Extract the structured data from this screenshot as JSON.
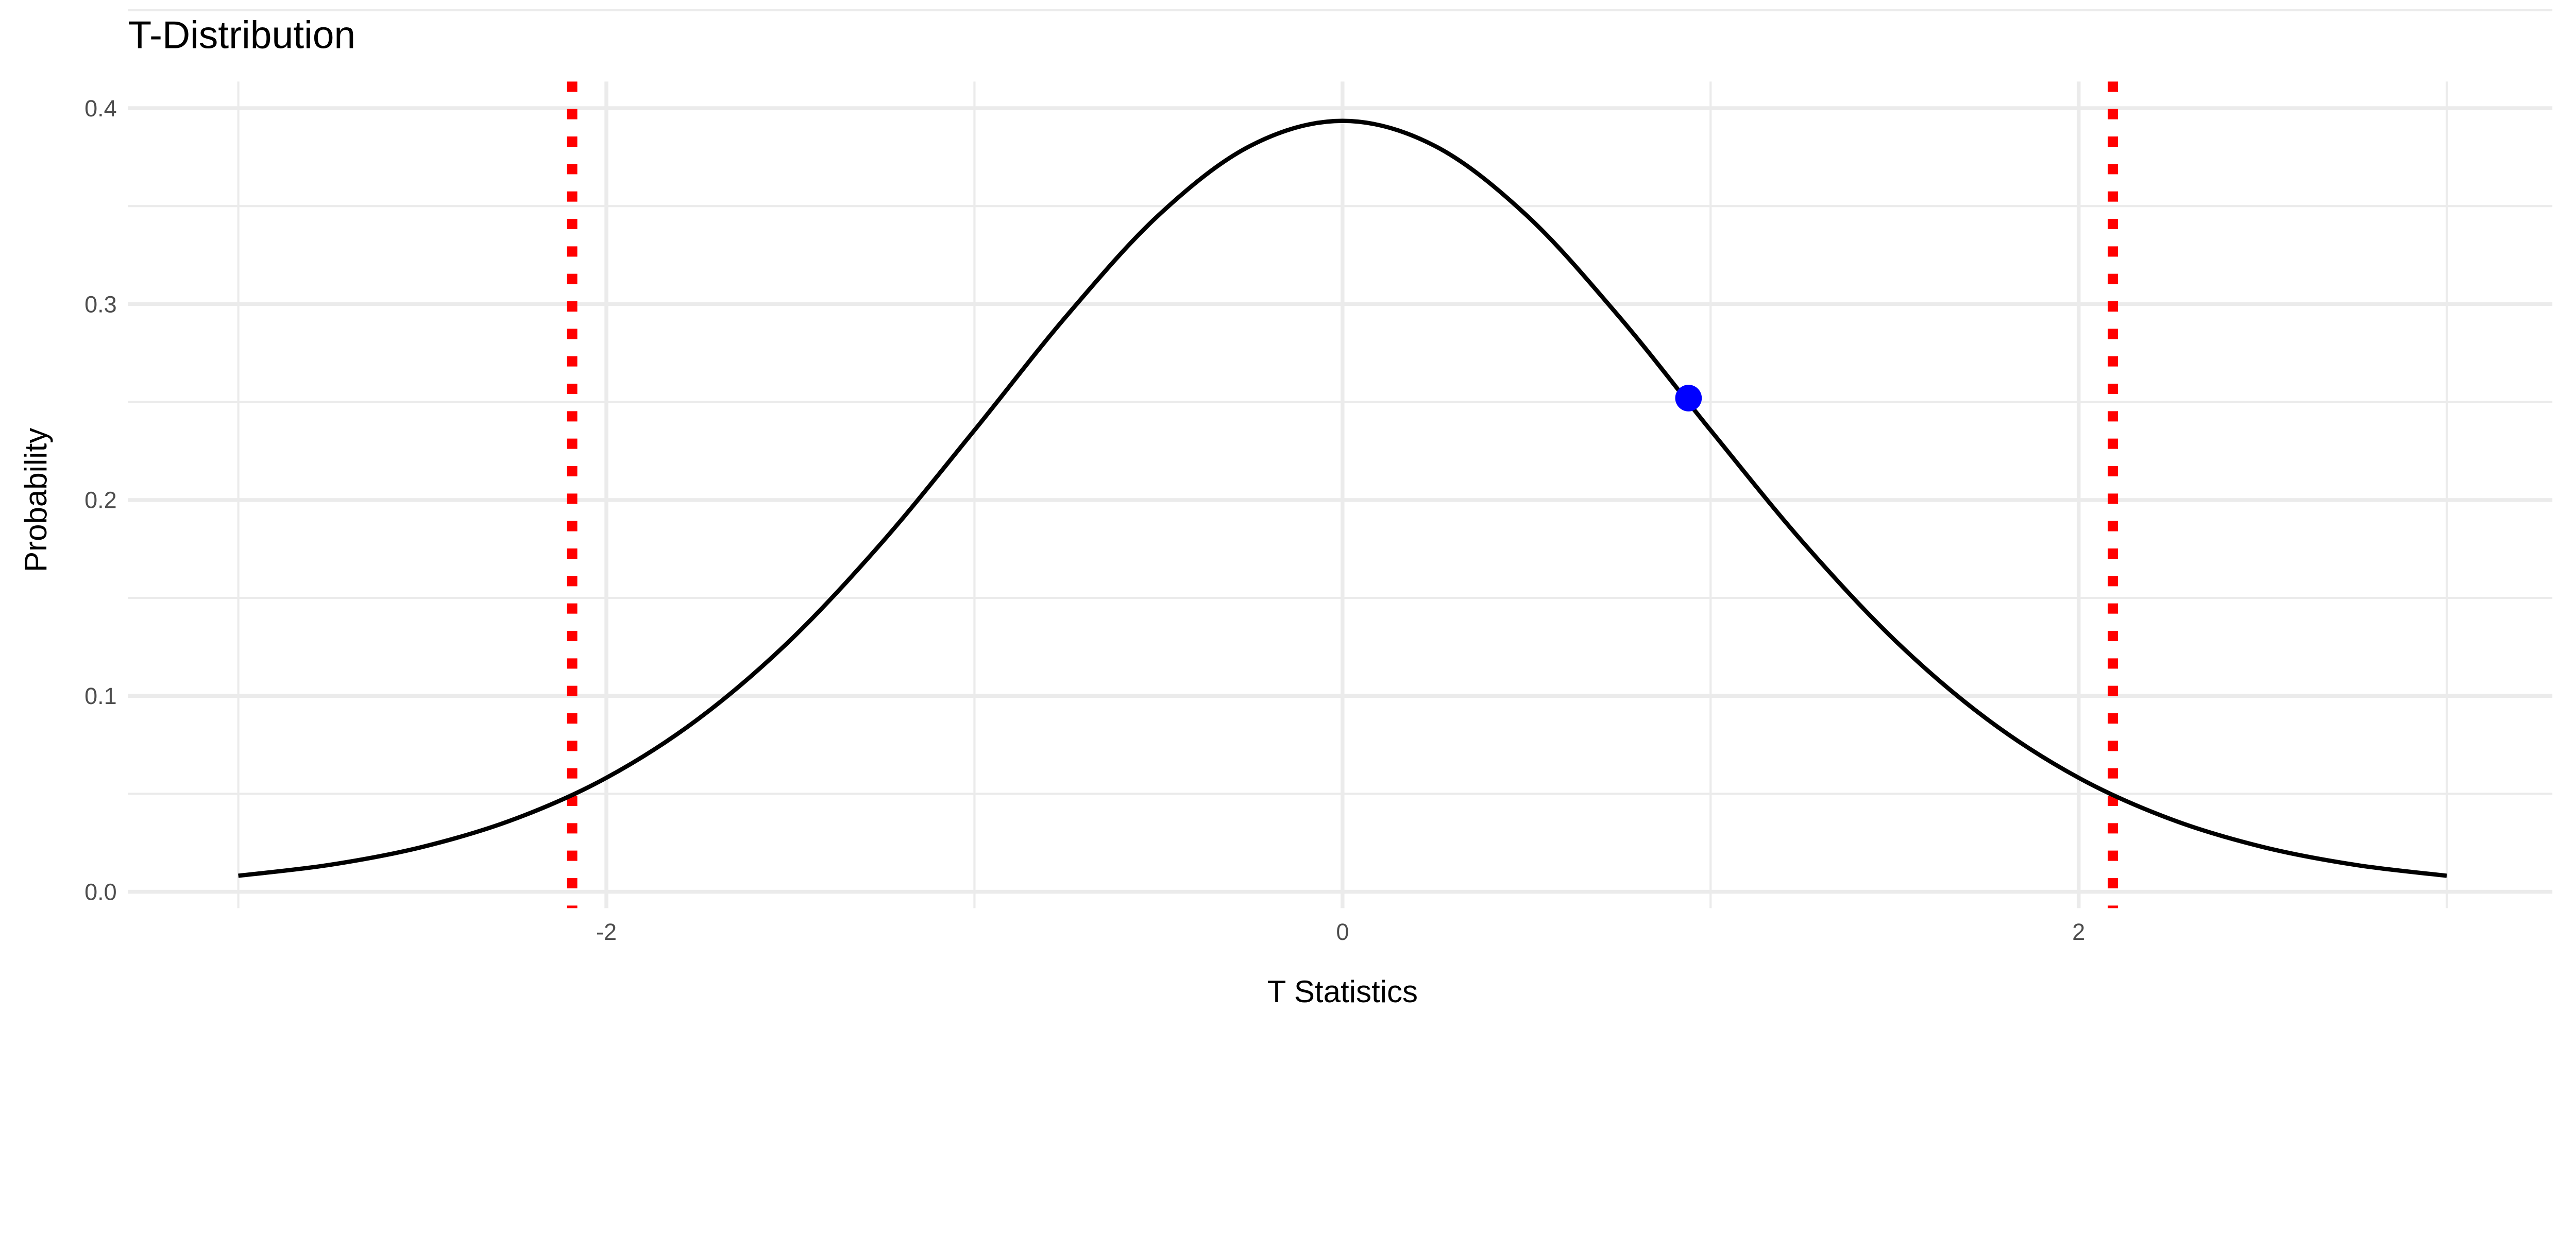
{
  "chart_data": {
    "type": "line",
    "title": "T-Distribution",
    "xlabel": "T Statistics",
    "ylabel": "Probability",
    "xlim": [
      -3,
      3
    ],
    "ylim": [
      0,
      0.4
    ],
    "x_ticks": [
      -2,
      0,
      2
    ],
    "x_tick_labels": [
      "-2",
      "0",
      "2"
    ],
    "y_ticks": [
      0,
      0.1,
      0.2,
      0.3,
      0.4
    ],
    "y_tick_labels": [
      "0.0",
      "0.1",
      "0.2",
      "0.3",
      "0.4"
    ],
    "grid": true,
    "legend": "none",
    "series": [
      {
        "x": [
          -3,
          -2.75,
          -2.5,
          -2.25,
          -2,
          -1.75,
          -1.5,
          -1.25,
          -1,
          -0.75,
          -0.5,
          -0.25,
          0,
          0.25,
          0.5,
          0.75,
          1,
          1.25,
          1.5,
          1.75,
          2,
          2.25,
          2.5,
          2.75,
          3
        ],
        "y": [
          0.0082,
          0.0138,
          0.0229,
          0.0371,
          0.0582,
          0.0883,
          0.1285,
          0.1786,
          0.2356,
          0.2939,
          0.3453,
          0.3808,
          0.3935,
          0.3808,
          0.3453,
          0.2939,
          0.2356,
          0.1786,
          0.1285,
          0.0883,
          0.0582,
          0.0371,
          0.0229,
          0.0138,
          0.0082
        ],
        "color": "#000000"
      }
    ],
    "point": {
      "x": 0.94,
      "y": 0.252,
      "color": "#0000ff"
    },
    "vlines": [
      {
        "x": -2.093,
        "color": "#ff0000",
        "style": "dotted"
      },
      {
        "x": 2.093,
        "color": "#ff0000",
        "style": "dotted"
      }
    ]
  }
}
